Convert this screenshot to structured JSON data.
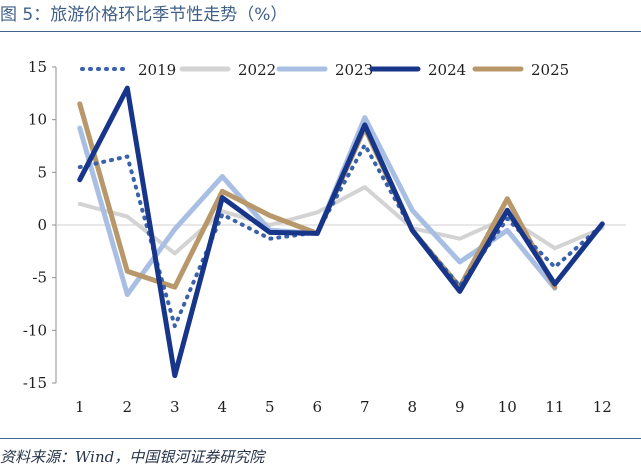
{
  "title": "图 5：旅游价格环比季节性走势（%）",
  "source": "资料来源：Wind，中国银河证券研究院",
  "chart_data": {
    "type": "line",
    "title": "旅游价格环比季节性走势（%）",
    "xlabel": "",
    "ylabel": "",
    "x": [
      1,
      2,
      3,
      4,
      5,
      6,
      7,
      8,
      9,
      10,
      11,
      12
    ],
    "ylim": [
      -15,
      15
    ],
    "yticks": [
      15,
      10,
      5,
      0,
      -5,
      -10,
      -15
    ],
    "grid": false,
    "legend_placement": "top",
    "series": [
      {
        "name": "2019",
        "values": [
          5.5,
          6.5,
          -9.6,
          1.0,
          -1.3,
          -0.7,
          7.6,
          -0.5,
          -5.8,
          0.6,
          -4.0,
          0.0
        ],
        "color": "#3b62a8",
        "style": "dotted"
      },
      {
        "name": "2022",
        "values": [
          2.0,
          0.8,
          -2.7,
          1.3,
          0.0,
          1.2,
          3.6,
          -0.3,
          -1.3,
          0.7,
          -2.2,
          -0.3
        ],
        "color": "#d3d3d3",
        "style": "solid"
      },
      {
        "name": "2023",
        "values": [
          9.2,
          -6.6,
          -0.4,
          4.6,
          -0.5,
          -0.8,
          10.2,
          1.4,
          -3.5,
          -0.5,
          -6.0,
          null
        ],
        "color": "#a8bfe3",
        "style": "solid"
      },
      {
        "name": "2024",
        "values": [
          4.3,
          13.0,
          -14.3,
          2.6,
          -0.7,
          -0.8,
          9.5,
          -0.5,
          -6.3,
          1.4,
          -5.6,
          0.1
        ],
        "color": "#17368a",
        "style": "solid"
      },
      {
        "name": "2025",
        "values": [
          11.5,
          -4.4,
          -5.9,
          3.2,
          0.9,
          -0.8,
          9.2,
          -0.5,
          -5.9,
          2.5,
          -5.9,
          null
        ],
        "color": "#b8986a",
        "style": "solid"
      }
    ]
  }
}
